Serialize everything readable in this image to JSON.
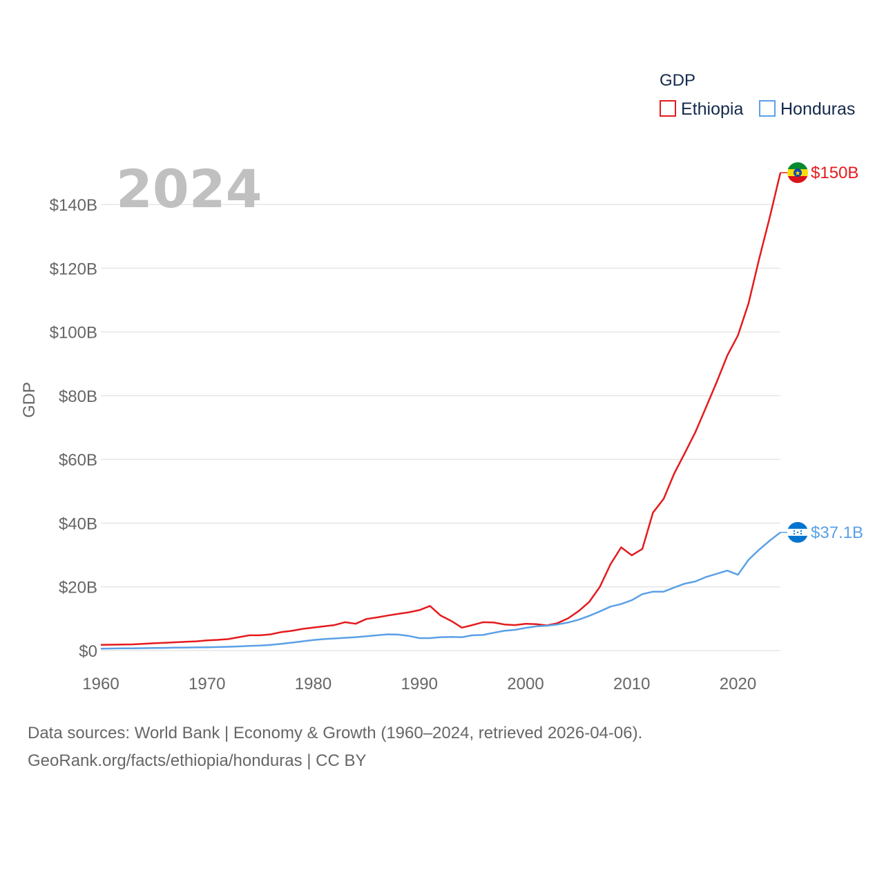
{
  "colors": {
    "ethiopia": "#e41a1c",
    "honduras": "#5aa0e6",
    "grid": "#e6e6e6",
    "text": "#666666"
  },
  "chart_data": {
    "type": "line",
    "title": "GDP",
    "highlight_year_label": "2024",
    "ylabel": "GDP",
    "xlabel": "",
    "xlim": [
      1960,
      2024
    ],
    "ylim": [
      0,
      150
    ],
    "x_ticks": [
      1960,
      1970,
      1980,
      1990,
      2000,
      2010,
      2020
    ],
    "y_ticks": [
      0,
      20,
      40,
      60,
      80,
      100,
      120,
      140
    ],
    "y_tick_labels": [
      "$0",
      "$20B",
      "$40B",
      "$60B",
      "$80B",
      "$100B",
      "$120B",
      "$140B"
    ],
    "legend_title": "GDP",
    "legend_position": "top-right",
    "series": [
      {
        "name": "Ethiopia",
        "color": "#e41a1c",
        "flag_icon": "ethiopia-flag-icon",
        "end_label": "$150B",
        "x": [
          1960,
          1961,
          1962,
          1963,
          1964,
          1965,
          1966,
          1967,
          1968,
          1969,
          1970,
          1971,
          1972,
          1973,
          1974,
          1975,
          1976,
          1977,
          1978,
          1979,
          1980,
          1981,
          1982,
          1983,
          1984,
          1985,
          1986,
          1987,
          1988,
          1989,
          1990,
          1991,
          1992,
          1993,
          1994,
          1995,
          1996,
          1997,
          1998,
          1999,
          2000,
          2001,
          2002,
          2003,
          2004,
          2005,
          2006,
          2007,
          2008,
          2009,
          2010,
          2011,
          2012,
          2013,
          2014,
          2015,
          2016,
          2017,
          2018,
          2019,
          2020,
          2021,
          2022,
          2023,
          2024
        ],
        "values": [
          1.8,
          1.85,
          1.9,
          1.95,
          2.1,
          2.3,
          2.45,
          2.6,
          2.75,
          2.9,
          3.2,
          3.35,
          3.6,
          4.2,
          4.8,
          4.8,
          5.1,
          5.8,
          6.2,
          6.8,
          7.2,
          7.6,
          8.0,
          8.9,
          8.4,
          9.9,
          10.4,
          11.0,
          11.5,
          12.0,
          12.7,
          14.0,
          11.0,
          9.3,
          7.2,
          8.0,
          8.9,
          8.8,
          8.2,
          8.0,
          8.4,
          8.3,
          7.9,
          8.6,
          10.1,
          12.4,
          15.3,
          20.0,
          27.1,
          32.4,
          29.9,
          31.9,
          43.3,
          47.6,
          55.6,
          62.0,
          68.6,
          76.4,
          84.3,
          92.6,
          98.9,
          109.0,
          123.0,
          136.0,
          150.0
        ]
      },
      {
        "name": "Honduras",
        "color": "#5aa0e6",
        "flag_icon": "honduras-flag-icon",
        "end_label": "$37.1B",
        "x": [
          1960,
          1961,
          1962,
          1963,
          1964,
          1965,
          1966,
          1967,
          1968,
          1969,
          1970,
          1971,
          1972,
          1973,
          1974,
          1975,
          1976,
          1977,
          1978,
          1979,
          1980,
          1981,
          1982,
          1983,
          1984,
          1985,
          1986,
          1987,
          1988,
          1989,
          1990,
          1991,
          1992,
          1993,
          1994,
          1995,
          1996,
          1997,
          1998,
          1999,
          2000,
          2001,
          2002,
          2003,
          2004,
          2005,
          2006,
          2007,
          2008,
          2009,
          2010,
          2011,
          2012,
          2013,
          2014,
          2015,
          2016,
          2017,
          2018,
          2019,
          2020,
          2021,
          2022,
          2023,
          2024
        ],
        "values": [
          0.6,
          0.65,
          0.7,
          0.72,
          0.75,
          0.8,
          0.85,
          0.9,
          0.95,
          1.0,
          1.05,
          1.1,
          1.2,
          1.3,
          1.45,
          1.55,
          1.8,
          2.1,
          2.5,
          2.9,
          3.3,
          3.6,
          3.8,
          4.0,
          4.2,
          4.5,
          4.8,
          5.1,
          5.0,
          4.6,
          3.9,
          3.9,
          4.2,
          4.3,
          4.2,
          4.8,
          4.9,
          5.6,
          6.2,
          6.5,
          7.1,
          7.6,
          7.8,
          8.2,
          8.8,
          9.7,
          10.9,
          12.3,
          13.8,
          14.6,
          15.8,
          17.7,
          18.5,
          18.5,
          19.8,
          21.0,
          21.7,
          23.1,
          24.1,
          25.1,
          23.8,
          28.5,
          31.7,
          34.5,
          37.1
        ]
      }
    ]
  },
  "source": {
    "line1": "Data sources: World Bank | Economy & Growth (1960–2024, retrieved 2026-04-06).",
    "line2": "GeoRank.org/facts/ethiopia/honduras | CC BY"
  }
}
